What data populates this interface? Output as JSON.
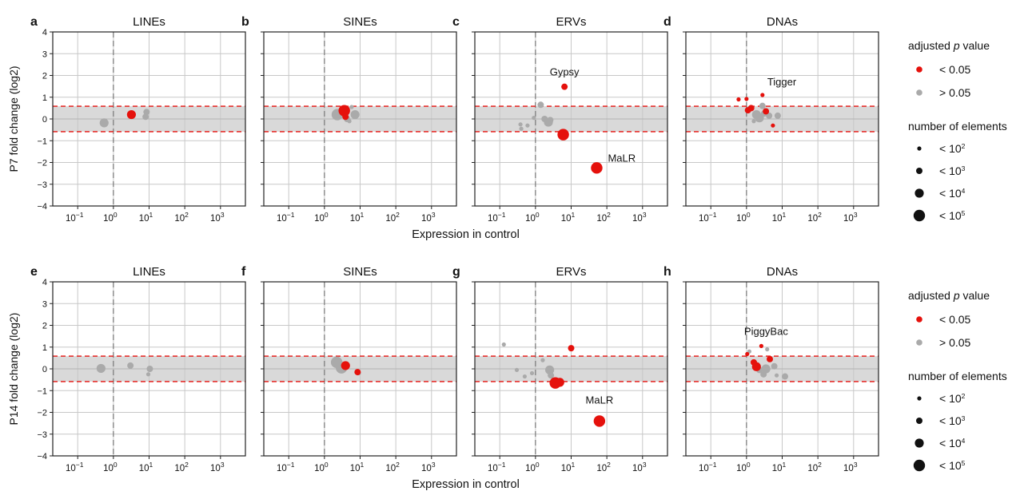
{
  "colors": {
    "significant": "#e5110c",
    "not_significant": "#aaaaaa",
    "band": "#d9d9d9",
    "grid": "#c8c8c8",
    "threshold_line": "#e5110c"
  },
  "rows": [
    {
      "ylabel": "P7 fold change (log2)",
      "xlabel": "Expression in control"
    },
    {
      "ylabel": "P14 fold change (log2)",
      "xlabel": "Expression in control"
    }
  ],
  "legend": {
    "groups": [
      {
        "title_before": "adjusted ",
        "title_italic": "p",
        "title_after": " value",
        "items": [
          {
            "label": "< 0.05",
            "color": "significant",
            "size": "medium"
          },
          {
            "label": "> 0.05",
            "color": "not_significant",
            "size": "medium"
          }
        ]
      },
      {
        "title_before": "number of elements",
        "title_italic": "",
        "title_after": "",
        "items": [
          {
            "label": "< 10",
            "sup": "2",
            "size": 1
          },
          {
            "label": "< 10",
            "sup": "3",
            "size": 2
          },
          {
            "label": "< 10",
            "sup": "4",
            "size": 3
          },
          {
            "label": "< 10",
            "sup": "5",
            "size": 4
          }
        ]
      }
    ]
  },
  "chart_data": [
    {
      "type": "scatter",
      "panel": "a",
      "title": "LINEs",
      "row": 0,
      "col": 0,
      "x_scale": "log10",
      "xlim": [
        0.02,
        5000
      ],
      "ylim": [
        -4,
        4
      ],
      "xticks": [
        {
          "base": "10",
          "exp": "-1"
        },
        {
          "base": "10",
          "exp": "0"
        },
        {
          "base": "10",
          "exp": "1"
        },
        {
          "base": "10",
          "exp": "2"
        },
        {
          "base": "10",
          "exp": "3"
        }
      ],
      "yticks": [
        "-4",
        "-3",
        "-2",
        "-1",
        "0",
        "1",
        "2",
        "3",
        "4"
      ],
      "threshold": 0.585,
      "points": [
        {
          "x": 0.55,
          "y": -0.18,
          "size": 3,
          "sig": false
        },
        {
          "x": 3.2,
          "y": 0.2,
          "size": 3,
          "sig": true
        },
        {
          "x": 8.5,
          "y": 0.32,
          "size": 2,
          "sig": false
        },
        {
          "x": 8.0,
          "y": 0.1,
          "size": 2,
          "sig": false
        }
      ],
      "labels": []
    },
    {
      "type": "scatter",
      "panel": "b",
      "title": "SINEs",
      "row": 0,
      "col": 1,
      "x_scale": "log10",
      "xlim": [
        0.02,
        5000
      ],
      "ylim": [
        -4,
        4
      ],
      "xticks": [
        {
          "base": "10",
          "exp": "-1"
        },
        {
          "base": "10",
          "exp": "0"
        },
        {
          "base": "10",
          "exp": "1"
        },
        {
          "base": "10",
          "exp": "2"
        },
        {
          "base": "10",
          "exp": "3"
        }
      ],
      "yticks": [
        "-4",
        "-3",
        "-2",
        "-1",
        "0",
        "1",
        "2",
        "3",
        "4"
      ],
      "threshold": 0.585,
      "points": [
        {
          "x": 2.3,
          "y": 0.2,
          "size": 4,
          "sig": false
        },
        {
          "x": 3.6,
          "y": 0.38,
          "size": 4,
          "sig": true
        },
        {
          "x": 3.9,
          "y": 0.1,
          "size": 2,
          "sig": true
        },
        {
          "x": 4.3,
          "y": 0.0,
          "size": 2,
          "sig": false
        },
        {
          "x": 5.0,
          "y": -0.1,
          "size": 1,
          "sig": false
        },
        {
          "x": 5.8,
          "y": 0.55,
          "size": 1,
          "sig": false
        },
        {
          "x": 7.2,
          "y": 0.2,
          "size": 3,
          "sig": false
        }
      ],
      "labels": []
    },
    {
      "type": "scatter",
      "panel": "c",
      "title": "ERVs",
      "row": 0,
      "col": 2,
      "x_scale": "log10",
      "xlim": [
        0.02,
        5000
      ],
      "ylim": [
        -4,
        4
      ],
      "xticks": [
        {
          "base": "10",
          "exp": "-1"
        },
        {
          "base": "10",
          "exp": "0"
        },
        {
          "base": "10",
          "exp": "1"
        },
        {
          "base": "10",
          "exp": "2"
        },
        {
          "base": "10",
          "exp": "3"
        }
      ],
      "yticks": [
        "-4",
        "-3",
        "-2",
        "-1",
        "0",
        "1",
        "2",
        "3",
        "4"
      ],
      "threshold": 0.585,
      "points": [
        {
          "x": 0.38,
          "y": -0.25,
          "size": 1,
          "sig": false
        },
        {
          "x": 0.4,
          "y": -0.45,
          "size": 1,
          "sig": false
        },
        {
          "x": 0.6,
          "y": -0.3,
          "size": 1,
          "sig": false
        },
        {
          "x": 0.9,
          "y": 0.05,
          "size": 1,
          "sig": false
        },
        {
          "x": 1.4,
          "y": 0.65,
          "size": 2,
          "sig": false
        },
        {
          "x": 1.8,
          "y": 0.0,
          "size": 2,
          "sig": false
        },
        {
          "x": 2.3,
          "y": -0.15,
          "size": 3,
          "sig": false
        },
        {
          "x": 2.6,
          "y": -0.05,
          "size": 2,
          "sig": false
        },
        {
          "x": 6.0,
          "y": -0.72,
          "size": 4,
          "sig": true
        },
        {
          "x": 6.5,
          "y": 1.48,
          "size": 2,
          "sig": true
        },
        {
          "x": 52,
          "y": -2.25,
          "size": 4,
          "sig": true
        }
      ],
      "labels": [
        {
          "text": "Gypsy",
          "x": 6.5,
          "y": 1.48,
          "dx": 0,
          "dy": -14,
          "anchor": "middle"
        },
        {
          "text": "MaLR",
          "x": 52,
          "y": -2.25,
          "dx": 14,
          "dy": -8,
          "anchor": "start"
        }
      ]
    },
    {
      "type": "scatter",
      "panel": "d",
      "title": "DNAs",
      "row": 0,
      "col": 3,
      "x_scale": "log10",
      "xlim": [
        0.02,
        5000
      ],
      "ylim": [
        -4,
        4
      ],
      "xticks": [
        {
          "base": "10",
          "exp": "-1"
        },
        {
          "base": "10",
          "exp": "0"
        },
        {
          "base": "10",
          "exp": "1"
        },
        {
          "base": "10",
          "exp": "2"
        },
        {
          "base": "10",
          "exp": "3"
        }
      ],
      "yticks": [
        "-4",
        "-3",
        "-2",
        "-1",
        "0",
        "1",
        "2",
        "3",
        "4"
      ],
      "threshold": 0.585,
      "points": [
        {
          "x": 0.6,
          "y": 0.9,
          "size": 1,
          "sig": true
        },
        {
          "x": 1.0,
          "y": 0.92,
          "size": 1,
          "sig": true
        },
        {
          "x": 1.1,
          "y": 0.4,
          "size": 2,
          "sig": true
        },
        {
          "x": 1.35,
          "y": 0.5,
          "size": 2,
          "sig": true
        },
        {
          "x": 1.6,
          "y": -0.1,
          "size": 1,
          "sig": false
        },
        {
          "x": 1.9,
          "y": 0.2,
          "size": 3,
          "sig": false
        },
        {
          "x": 2.3,
          "y": 0.05,
          "size": 3,
          "sig": false
        },
        {
          "x": 2.8,
          "y": 1.1,
          "size": 1,
          "sig": true
        },
        {
          "x": 2.8,
          "y": 0.6,
          "size": 2,
          "sig": false
        },
        {
          "x": 3.1,
          "y": 0.25,
          "size": 2,
          "sig": false
        },
        {
          "x": 3.5,
          "y": 0.35,
          "size": 2,
          "sig": true
        },
        {
          "x": 4.3,
          "y": 0.15,
          "size": 2,
          "sig": false
        },
        {
          "x": 5.5,
          "y": -0.3,
          "size": 1,
          "sig": true
        },
        {
          "x": 7.5,
          "y": 0.15,
          "size": 2,
          "sig": false
        }
      ],
      "labels": [
        {
          "text": "Tigger",
          "x": 2.8,
          "y": 1.1,
          "dx": 6,
          "dy": -12,
          "anchor": "start"
        }
      ]
    },
    {
      "type": "scatter",
      "panel": "e",
      "title": "LINEs",
      "row": 1,
      "col": 0,
      "x_scale": "log10",
      "xlim": [
        0.02,
        5000
      ],
      "ylim": [
        -4,
        4
      ],
      "xticks": [
        {
          "base": "10",
          "exp": "-1"
        },
        {
          "base": "10",
          "exp": "0"
        },
        {
          "base": "10",
          "exp": "1"
        },
        {
          "base": "10",
          "exp": "2"
        },
        {
          "base": "10",
          "exp": "3"
        }
      ],
      "yticks": [
        "-4",
        "-3",
        "-2",
        "-1",
        "0",
        "1",
        "2",
        "3",
        "4"
      ],
      "threshold": 0.585,
      "points": [
        {
          "x": 0.45,
          "y": 0.02,
          "size": 3,
          "sig": false
        },
        {
          "x": 3.0,
          "y": 0.15,
          "size": 2,
          "sig": false
        },
        {
          "x": 10.5,
          "y": 0.0,
          "size": 2,
          "sig": false
        },
        {
          "x": 9.5,
          "y": -0.25,
          "size": 1,
          "sig": false
        }
      ],
      "labels": []
    },
    {
      "type": "scatter",
      "panel": "f",
      "title": "SINEs",
      "row": 1,
      "col": 1,
      "x_scale": "log10",
      "xlim": [
        0.02,
        5000
      ],
      "ylim": [
        -4,
        4
      ],
      "xticks": [
        {
          "base": "10",
          "exp": "-1"
        },
        {
          "base": "10",
          "exp": "0"
        },
        {
          "base": "10",
          "exp": "1"
        },
        {
          "base": "10",
          "exp": "2"
        },
        {
          "base": "10",
          "exp": "3"
        }
      ],
      "yticks": [
        "-4",
        "-3",
        "-2",
        "-1",
        "0",
        "1",
        "2",
        "3",
        "4"
      ],
      "threshold": 0.585,
      "points": [
        {
          "x": 2.2,
          "y": 0.3,
          "size": 4,
          "sig": false
        },
        {
          "x": 3.0,
          "y": 0.05,
          "size": 4,
          "sig": false
        },
        {
          "x": 3.9,
          "y": 0.15,
          "size": 3,
          "sig": true
        },
        {
          "x": 8.5,
          "y": -0.15,
          "size": 2,
          "sig": true
        },
        {
          "x": 9.2,
          "y": -0.2,
          "size": 1,
          "sig": false
        }
      ],
      "labels": []
    },
    {
      "type": "scatter",
      "panel": "g",
      "title": "ERVs",
      "row": 1,
      "col": 2,
      "x_scale": "log10",
      "xlim": [
        0.02,
        5000
      ],
      "ylim": [
        -4,
        4
      ],
      "xticks": [
        {
          "base": "10",
          "exp": "-1"
        },
        {
          "base": "10",
          "exp": "0"
        },
        {
          "base": "10",
          "exp": "1"
        },
        {
          "base": "10",
          "exp": "2"
        },
        {
          "base": "10",
          "exp": "3"
        }
      ],
      "yticks": [
        "-4",
        "-3",
        "-2",
        "-1",
        "0",
        "1",
        "2",
        "3",
        "4"
      ],
      "threshold": 0.585,
      "points": [
        {
          "x": 0.13,
          "y": 1.12,
          "size": 1,
          "sig": false
        },
        {
          "x": 0.3,
          "y": -0.05,
          "size": 1,
          "sig": false
        },
        {
          "x": 0.5,
          "y": -0.35,
          "size": 1,
          "sig": false
        },
        {
          "x": 0.8,
          "y": -0.2,
          "size": 1,
          "sig": false
        },
        {
          "x": 1.6,
          "y": 0.4,
          "size": 1,
          "sig": false
        },
        {
          "x": 2.5,
          "y": -0.05,
          "size": 3,
          "sig": false
        },
        {
          "x": 2.7,
          "y": -0.3,
          "size": 2,
          "sig": false
        },
        {
          "x": 3.6,
          "y": -0.65,
          "size": 4,
          "sig": true
        },
        {
          "x": 4.8,
          "y": -0.62,
          "size": 3,
          "sig": true
        },
        {
          "x": 10,
          "y": 0.95,
          "size": 2,
          "sig": true
        },
        {
          "x": 62,
          "y": -2.4,
          "size": 4,
          "sig": true
        }
      ],
      "labels": [
        {
          "text": "MaLR",
          "x": 62,
          "y": -2.4,
          "dx": 0,
          "dy": -22,
          "anchor": "middle"
        }
      ]
    },
    {
      "type": "scatter",
      "panel": "h",
      "title": "DNAs",
      "row": 1,
      "col": 3,
      "x_scale": "log10",
      "xlim": [
        0.02,
        5000
      ],
      "ylim": [
        -4,
        4
      ],
      "xticks": [
        {
          "base": "10",
          "exp": "-1"
        },
        {
          "base": "10",
          "exp": "0"
        },
        {
          "base": "10",
          "exp": "1"
        },
        {
          "base": "10",
          "exp": "2"
        },
        {
          "base": "10",
          "exp": "3"
        }
      ],
      "yticks": [
        "-4",
        "-3",
        "-2",
        "-1",
        "0",
        "1",
        "2",
        "3",
        "4"
      ],
      "threshold": 0.585,
      "points": [
        {
          "x": 1.05,
          "y": 0.68,
          "size": 1,
          "sig": true
        },
        {
          "x": 1.2,
          "y": 0.8,
          "size": 1,
          "sig": false
        },
        {
          "x": 1.6,
          "y": 0.3,
          "size": 2,
          "sig": true
        },
        {
          "x": 1.9,
          "y": 0.1,
          "size": 3,
          "sig": true
        },
        {
          "x": 2.3,
          "y": -0.05,
          "size": 2,
          "sig": false
        },
        {
          "x": 2.6,
          "y": 1.05,
          "size": 1,
          "sig": true
        },
        {
          "x": 3.0,
          "y": -0.25,
          "size": 2,
          "sig": false
        },
        {
          "x": 3.5,
          "y": 0.0,
          "size": 3,
          "sig": false
        },
        {
          "x": 3.8,
          "y": 0.9,
          "size": 1,
          "sig": false
        },
        {
          "x": 4.5,
          "y": 0.45,
          "size": 2,
          "sig": true
        },
        {
          "x": 6.0,
          "y": 0.12,
          "size": 2,
          "sig": false
        },
        {
          "x": 7.0,
          "y": -0.3,
          "size": 1,
          "sig": false
        },
        {
          "x": 12,
          "y": -0.35,
          "size": 2,
          "sig": false
        }
      ],
      "labels": [
        {
          "text": "PiggyBac",
          "x": 2.6,
          "y": 1.05,
          "dx": 6,
          "dy": -14,
          "anchor": "middle"
        }
      ]
    }
  ]
}
